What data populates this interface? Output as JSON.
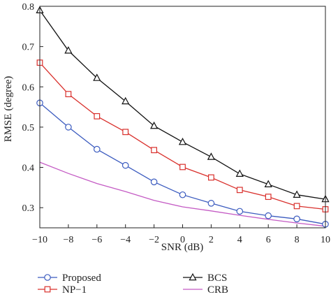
{
  "chart_data": {
    "type": "line",
    "title": "",
    "xlabel": "SNR (dB)",
    "ylabel": "RMSE (degree)",
    "xlim": [
      -10,
      10
    ],
    "ylim": [
      0.25,
      0.8
    ],
    "x": [
      -10,
      -8,
      -6,
      -4,
      -2,
      0,
      2,
      4,
      6,
      8,
      10
    ],
    "x_tick_labels": [
      "−10",
      "−8",
      "−6",
      "−4",
      "−2",
      "0",
      "2",
      "4",
      "6",
      "8",
      "10"
    ],
    "y_ticks": [
      0.3,
      0.4,
      0.5,
      0.6,
      0.7,
      0.8
    ],
    "y_tick_labels": [
      "0.3",
      "0.4",
      "0.5",
      "0.6",
      "0.7",
      "0.8"
    ],
    "grid": false,
    "legend_position": "bottom, outside plot",
    "series": [
      {
        "name": "Proposed",
        "marker": "circle",
        "color": "#3b5bbf",
        "values": [
          0.56,
          0.5,
          0.445,
          0.405,
          0.364,
          0.332,
          0.311,
          0.291,
          0.28,
          0.272,
          0.259
        ]
      },
      {
        "name": "BCS",
        "marker": "triangle",
        "color": "#111111",
        "values": [
          0.79,
          0.69,
          0.622,
          0.564,
          0.503,
          0.463,
          0.426,
          0.384,
          0.358,
          0.332,
          0.321
        ]
      },
      {
        "name": "NP-1",
        "marker": "square",
        "color": "#d9302c",
        "values": [
          0.66,
          0.582,
          0.527,
          0.488,
          0.443,
          0.401,
          0.375,
          0.344,
          0.327,
          0.304,
          0.296
        ]
      },
      {
        "name": "CRB",
        "marker": "none",
        "color": "#c45bc4",
        "values": [
          0.413,
          0.385,
          0.36,
          0.34,
          0.318,
          0.302,
          0.292,
          0.281,
          0.271,
          0.262,
          0.254
        ]
      }
    ]
  },
  "legend": {
    "items": [
      {
        "label": "Proposed"
      },
      {
        "label": "BCS"
      },
      {
        "label": "NP−1"
      },
      {
        "label": "CRB"
      }
    ]
  }
}
